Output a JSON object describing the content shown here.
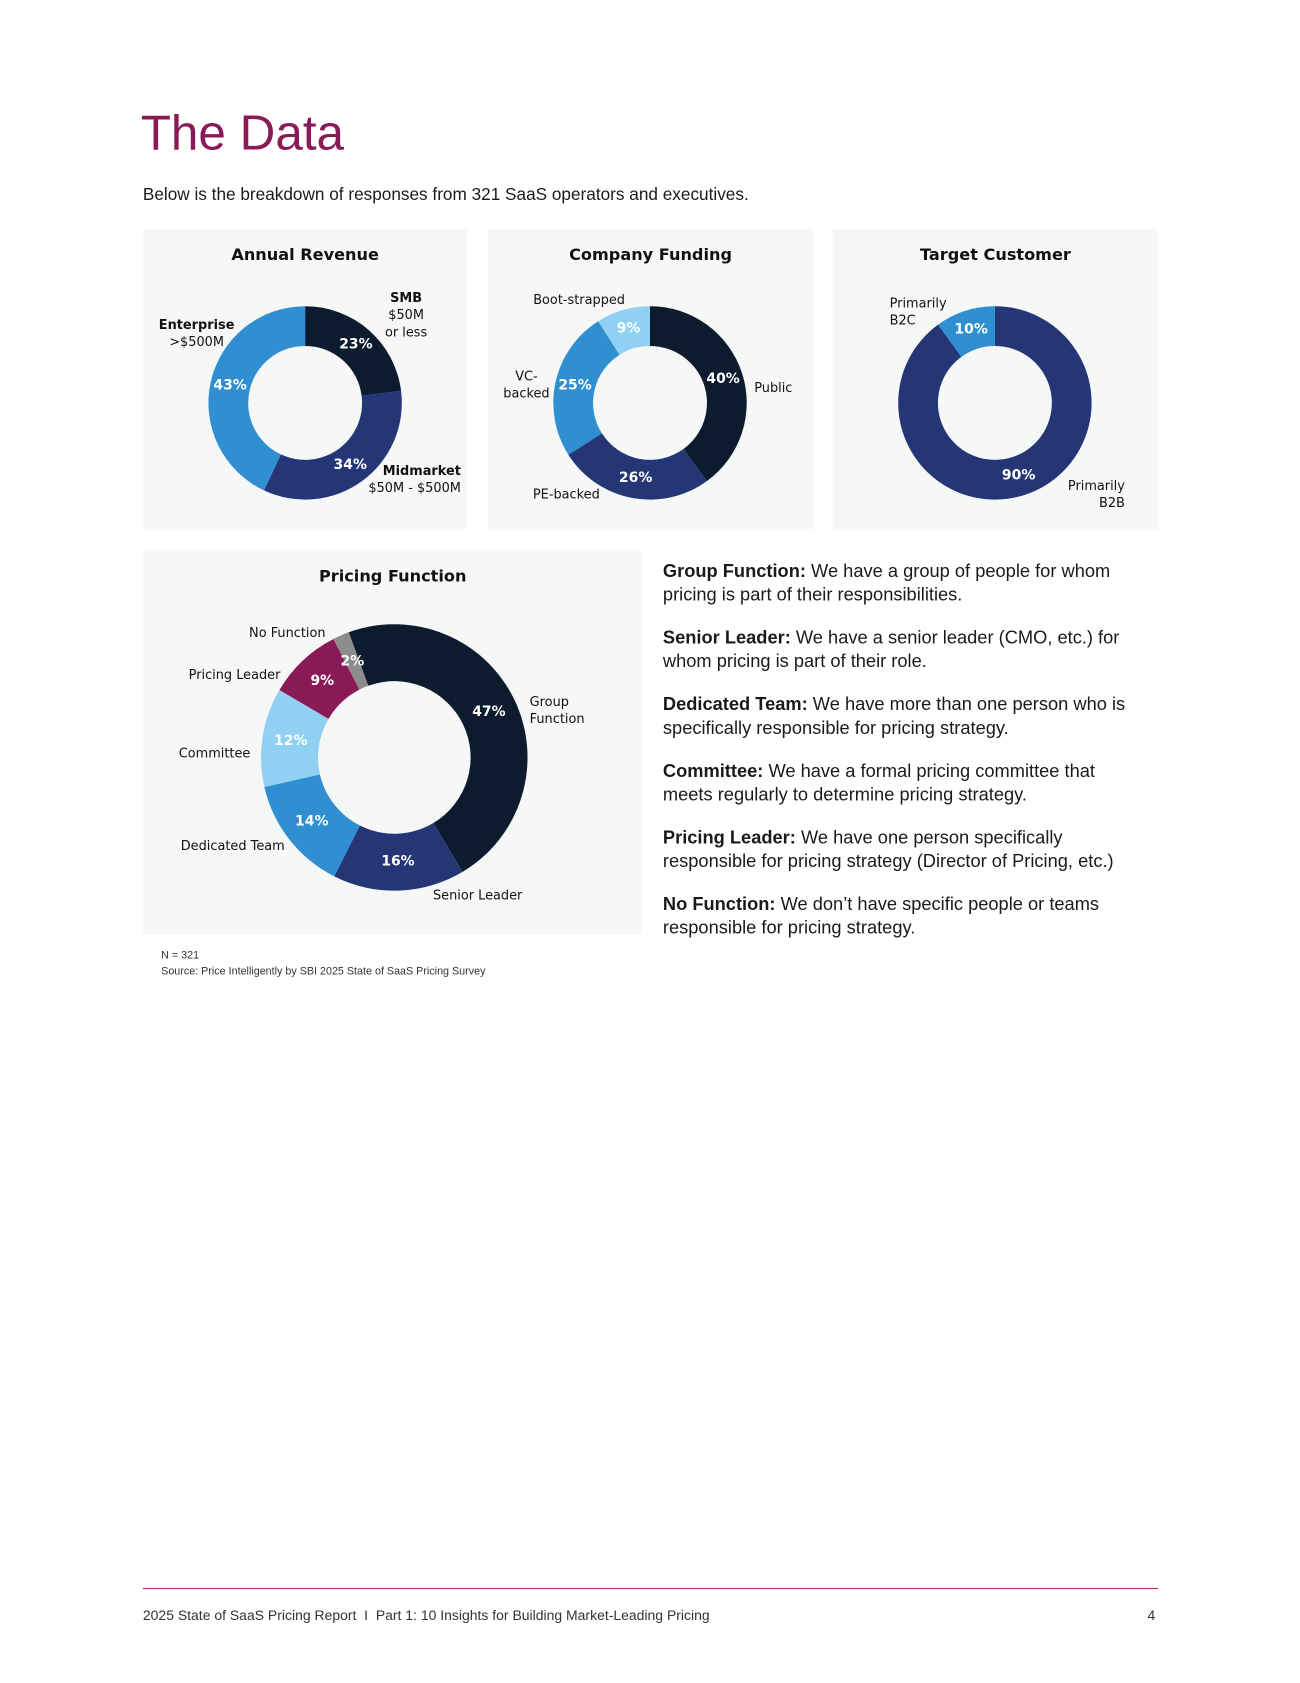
{
  "header": {
    "title": "The Data",
    "subtitle": "Below is the breakdown of responses from 321 SaaS operators and executives."
  },
  "chart_data": [
    {
      "type": "donut",
      "title": "Annual Revenue",
      "categories": [
        "SMB\n$50M\nor less",
        "Midmarket\n$50M - $500M",
        "Enterprise\n>$500M"
      ],
      "values": [
        23,
        34,
        43
      ],
      "value_labels": [
        "23%",
        "34%",
        "43%"
      ],
      "colors": [
        "#0c1b2e",
        "#243676",
        "#2f8fd1"
      ]
    },
    {
      "type": "donut",
      "title": "Company Funding",
      "categories": [
        "Public",
        "PE-backed",
        "VC-\nbacked",
        "Boot-strapped"
      ],
      "values": [
        40,
        26,
        25,
        9
      ],
      "value_labels": [
        "40%",
        "26%",
        "25%",
        "9%"
      ],
      "colors": [
        "#0c1b2e",
        "#243676",
        "#2f8fd1",
        "#8fd0f3"
      ]
    },
    {
      "type": "donut",
      "title": "Target Customer",
      "categories": [
        "Primarily\nB2B",
        "Primarily\nB2C"
      ],
      "values": [
        90,
        10
      ],
      "value_labels": [
        "90%",
        "10%"
      ],
      "colors": [
        "#243676",
        "#2f8fd1"
      ]
    },
    {
      "type": "donut",
      "title": "Pricing Function",
      "categories": [
        "Group\nFunction",
        "Senior Leader",
        "Dedicated Team",
        "Committee",
        "Pricing Leader",
        "No Function"
      ],
      "values": [
        47,
        16,
        14,
        12,
        9,
        2
      ],
      "value_labels": [
        "47%",
        "16%",
        "14%",
        "12%",
        "9%",
        "2%"
      ],
      "colors": [
        "#0c1b2e",
        "#243676",
        "#2f8fd1",
        "#8fd0f3",
        "#8a1a55",
        "#8c8c8c"
      ]
    }
  ],
  "definitions": [
    {
      "term": "Group Function:",
      "text": "We have a group of people for whom pricing is part of their responsibilities."
    },
    {
      "term": "Senior Leader:",
      "text": "We have a senior leader (CMO, etc.) for whom pricing is part of their role."
    },
    {
      "term": "Dedicated Team:",
      "text": "We have more than one person who is specifically responsible for pricing strategy."
    },
    {
      "term": "Committee:",
      "text": "We have a formal pricing committee that meets regularly to determine pricing strategy."
    },
    {
      "term": "Pricing Leader:",
      "text": "We have one person specifically responsible for pricing strategy (Director of Pricing, etc.)"
    },
    {
      "term": "No Function:",
      "text": "We don’t have specific people or teams responsible for pricing strategy."
    }
  ],
  "notes": [
    "N = 321",
    "Source: Price Intelligently by SBI 2025 State of SaaS Pricing Survey"
  ],
  "footer": {
    "text": "2025 State of SaaS Pricing Report  I  Part 1: 10 Insights for Building Market-Leading Pricing",
    "page": "4"
  }
}
